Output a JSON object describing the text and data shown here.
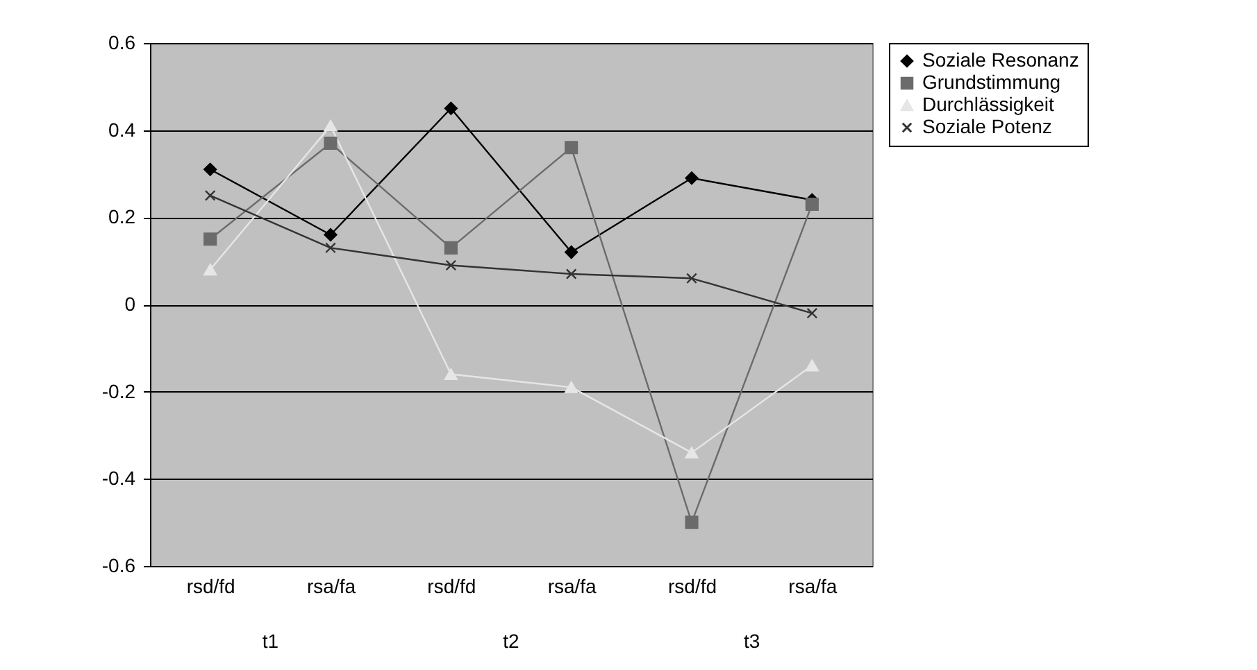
{
  "chart_data": {
    "type": "line",
    "categories": [
      "rsd/fd",
      "rsa/fa",
      "rsd/fd",
      "rsa/fa",
      "rsd/fd",
      "rsa/fa"
    ],
    "annotations": [
      "t1",
      "t2",
      "t3"
    ],
    "series": [
      {
        "name": "Soziale Resonanz",
        "color": "#000000",
        "marker": "diamond",
        "values": [
          0.31,
          0.16,
          0.45,
          0.12,
          0.29,
          0.24
        ]
      },
      {
        "name": "Grundstimmung",
        "color": "#6b6b6b",
        "marker": "square",
        "values": [
          0.15,
          0.37,
          0.13,
          0.36,
          -0.5,
          0.23
        ]
      },
      {
        "name": "Durchlässigkeit",
        "color": "#e6e6e6",
        "marker": "triangle",
        "values": [
          0.08,
          0.41,
          -0.16,
          -0.19,
          -0.34,
          -0.14
        ]
      },
      {
        "name": "Soziale Potenz",
        "color": "#333333",
        "marker": "cross",
        "values": [
          0.25,
          0.13,
          0.09,
          0.07,
          0.06,
          -0.02
        ]
      }
    ],
    "ylim": [
      -0.6,
      0.6
    ],
    "yticks": [
      -0.6,
      -0.4,
      -0.2,
      0,
      0.2,
      0.4,
      0.6
    ],
    "grid": "y",
    "legend": "right"
  }
}
